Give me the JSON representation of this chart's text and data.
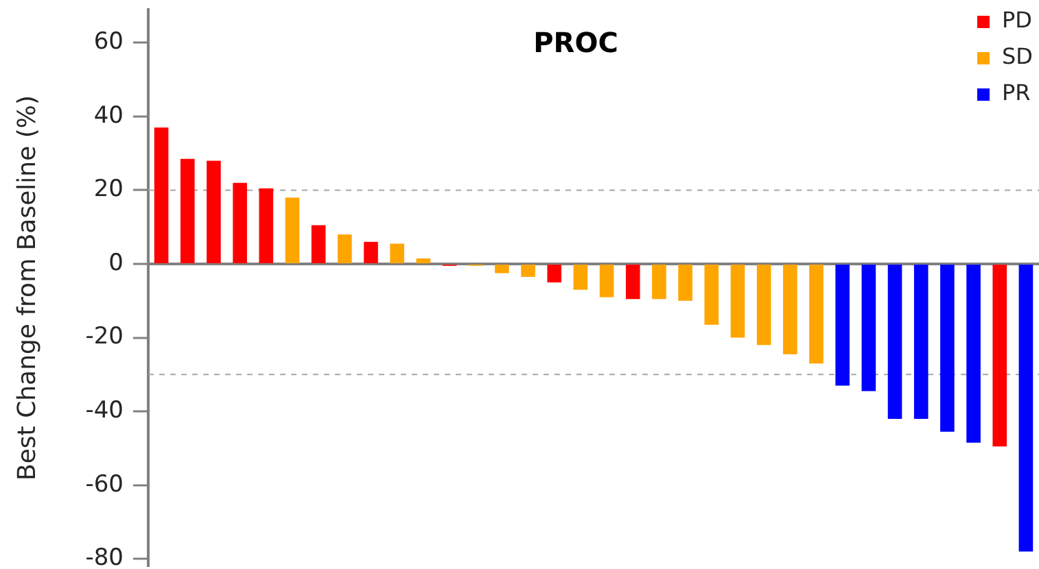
{
  "chart_data": {
    "type": "bar",
    "title": "PROC",
    "ylabel": "Best Change from Baseline (%)",
    "categories": [
      null,
      null,
      null,
      null,
      null,
      null,
      null,
      null,
      null,
      null,
      null,
      null,
      null,
      null,
      null,
      null,
      null,
      null,
      null,
      null,
      null,
      null,
      null,
      null,
      null,
      null,
      null,
      null,
      null,
      null,
      null,
      null,
      null,
      null
    ],
    "series": [
      {
        "name": "PD",
        "color": "#ff0000",
        "values": [
          37,
          28.5,
          28,
          22,
          20.5,
          null,
          10.5,
          null,
          6,
          null,
          null,
          -0.5,
          null,
          null,
          null,
          -5,
          null,
          null,
          -9.5,
          null,
          null,
          null,
          null,
          null,
          null,
          null,
          null,
          null,
          null,
          null,
          null,
          null,
          -49.5,
          null
        ]
      },
      {
        "name": "SD",
        "color": "#ffa500",
        "values": [
          null,
          null,
          null,
          null,
          null,
          18,
          null,
          8,
          null,
          5.5,
          1.5,
          null,
          -0.5,
          -2.5,
          -3.5,
          null,
          -7,
          -9,
          null,
          -9.5,
          -10,
          -16.5,
          -20,
          -22,
          -24.5,
          -27,
          null,
          null,
          null,
          null,
          null,
          null,
          null,
          null
        ]
      },
      {
        "name": "PR",
        "color": "#0000ff",
        "values": [
          null,
          null,
          null,
          null,
          null,
          null,
          null,
          null,
          null,
          null,
          null,
          null,
          null,
          null,
          null,
          null,
          null,
          null,
          null,
          null,
          null,
          null,
          null,
          null,
          null,
          null,
          -33,
          -34.5,
          -42,
          -42,
          -45.5,
          -48.5,
          null,
          -78
        ]
      }
    ],
    "ylim": [
      -82,
      69
    ],
    "yticks": [
      -80,
      -60,
      -40,
      -20,
      0,
      20,
      40,
      60
    ],
    "ref_lines": [
      {
        "axis": "y",
        "value": 20,
        "color": "#a6a6a6",
        "line_style": "dashed"
      },
      {
        "axis": "y",
        "value": -30,
        "color": "#a6a6a6",
        "line_style": "dashed"
      }
    ],
    "legend": "top right",
    "grid": false
  }
}
